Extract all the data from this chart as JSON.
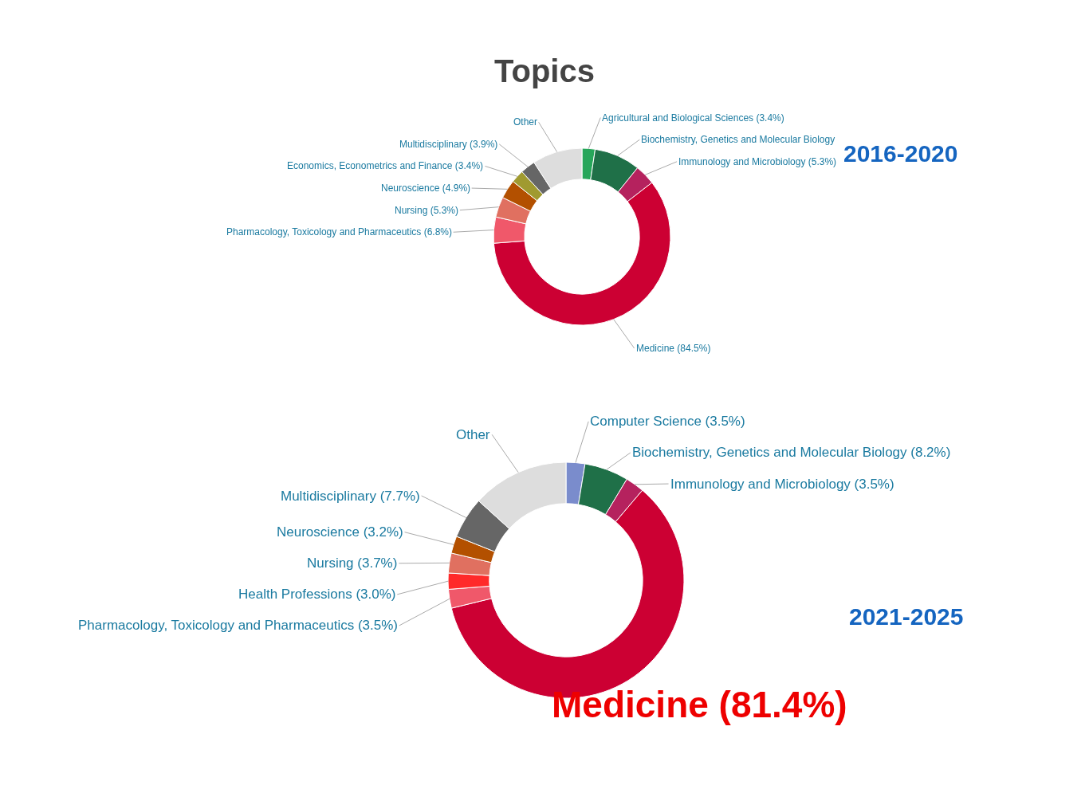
{
  "chart_data": [
    {
      "type": "donut",
      "title": "Topics",
      "subtitle": "2016-2020",
      "categories": [
        "Agricultural and Biological Sciences",
        "Biochemistry, Genetics and Molecular Biology",
        "Immunology and Microbiology",
        "Medicine",
        "Pharmacology, Toxicology and Pharmaceutics",
        "Nursing",
        "Neuroscience",
        "Economics, Econometrics and Finance",
        "Multidisciplinary",
        "Other"
      ],
      "values": [
        3.4,
        12,
        5.3,
        84.5,
        6.8,
        5.3,
        4.9,
        3.4,
        3.9,
        13
      ],
      "value_labels": [
        "(3.4%)",
        null,
        "(5.3%)",
        "(84.5%)",
        "(6.8%)",
        "(5.3%)",
        "(4.9%)",
        "(3.4%)",
        "(3.9%)",
        null
      ],
      "colors": [
        "#27a65a",
        "#1f7048",
        "#b5225e",
        "#cc0033",
        "#f0586a",
        "#e07060",
        "#b35000",
        "#a09a30",
        "#666666",
        "#dddddd"
      ]
    },
    {
      "type": "donut",
      "subtitle": "2021-2025",
      "annotations": [
        "Medicine (81.4%)"
      ],
      "categories": [
        "Computer Science",
        "Biochemistry, Genetics and Molecular Biology",
        "Immunology and Microbiology",
        null,
        "Pharmacology, Toxicology and Pharmaceutics",
        "Health Professions",
        "Nursing",
        "Neuroscience",
        "Multidisciplinary",
        "Other"
      ],
      "values": [
        3.5,
        8.2,
        3.5,
        81.4,
        3.5,
        3.0,
        3.7,
        3.2,
        7.7,
        18
      ],
      "value_labels": [
        "(3.5%)",
        "(8.2%)",
        "(3.5%)",
        null,
        "(3.5%)",
        "(3.0%)",
        "(3.7%)",
        "(3.2%)",
        "(7.7%)",
        null
      ],
      "colors": [
        "#7a8ccc",
        "#1f7048",
        "#b5225e",
        "#cc0033",
        "#f0586a",
        "#ff2a2a",
        "#e07060",
        "#b35000",
        "#666666",
        "#dddddd"
      ]
    }
  ]
}
